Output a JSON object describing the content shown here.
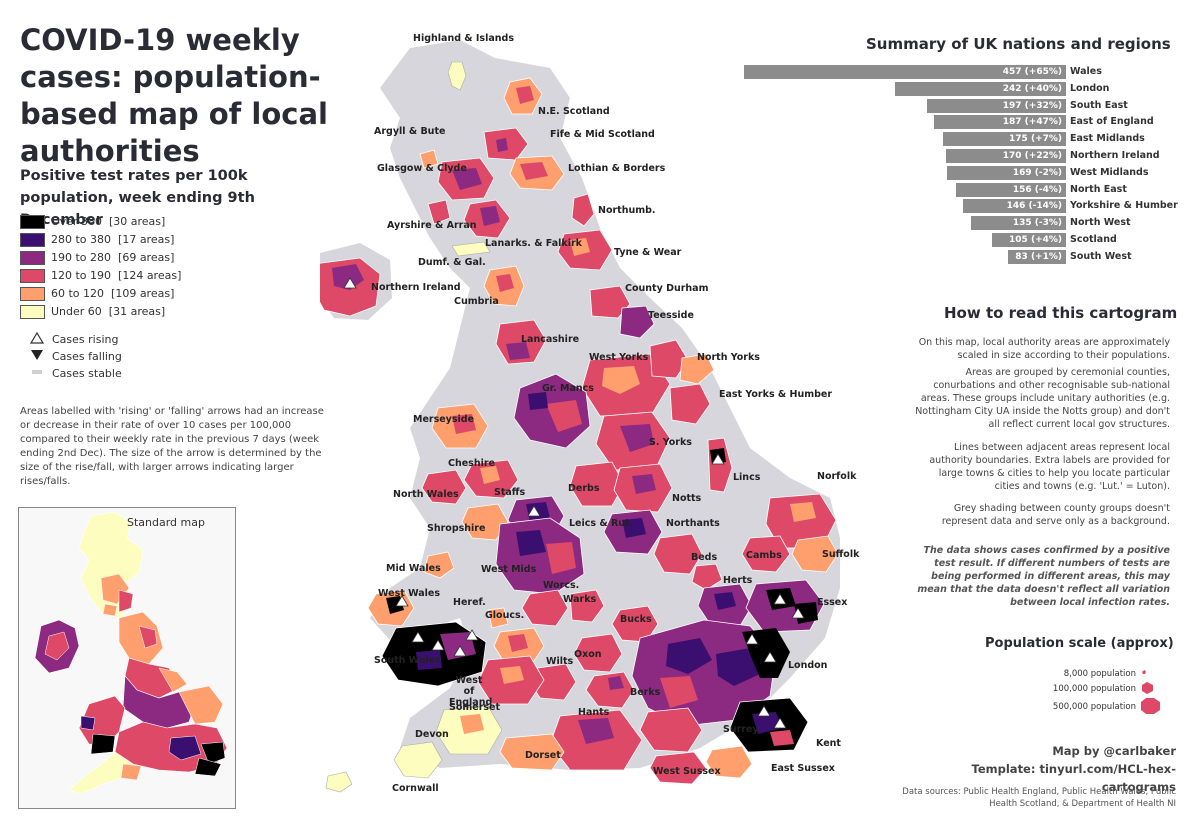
{
  "title": "COVID-19 weekly cases: population-based map of local authorities",
  "legend": {
    "heading": "Positive test rates per 100k population, week ending 9th December",
    "bins": [
      {
        "label": "Over 380",
        "count": "[30 areas]",
        "color": "#000000"
      },
      {
        "label": "280 to 380",
        "count": "[17 areas]",
        "color": "#3b0f70"
      },
      {
        "label": "190 to 280",
        "count": "[69 areas]",
        "color": "#8c2981"
      },
      {
        "label": "120 to 190",
        "count": "[124 areas]",
        "color": "#de4968"
      },
      {
        "label": "60 to 120",
        "count": "[109 areas]",
        "color": "#fe9f6d"
      },
      {
        "label": "Under 60",
        "count": "[31 areas]",
        "color": "#fcfdbf"
      }
    ],
    "trends": [
      {
        "label": "Cases rising",
        "icon": "triangle-up-outline"
      },
      {
        "label": "Cases falling",
        "icon": "triangle-down-filled"
      },
      {
        "label": "Cases stable",
        "icon": "grey-bar"
      }
    ],
    "note": "Areas labelled with 'rising' or 'falling' arrows had an increase or decrease in their rate of over 10 cases per 100,000 compared to their weekly rate in the previous 7 days (week ending 2nd Dec). The size of the arrow is determined by the size of the rise/fall, with larger arrows indicating larger rises/falls."
  },
  "standard_map": {
    "title": "Standard map"
  },
  "summary": {
    "title": "Summary of UK nations and regions",
    "rows": [
      {
        "name": "Wales",
        "value": 457,
        "change": "(+65%)"
      },
      {
        "name": "London",
        "value": 242,
        "change": "(+40%)"
      },
      {
        "name": "South East",
        "value": 197,
        "change": "(+32%)"
      },
      {
        "name": "East of England",
        "value": 187,
        "change": "(+47%)"
      },
      {
        "name": "East Midlands",
        "value": 175,
        "change": "(+7%)"
      },
      {
        "name": "Northern Ireland",
        "value": 170,
        "change": "(+22%)"
      },
      {
        "name": "West Midlands",
        "value": 169,
        "change": "(-2%)"
      },
      {
        "name": "North East",
        "value": 156,
        "change": "(-4%)"
      },
      {
        "name": "Yorkshire & Humber",
        "value": 146,
        "change": "(-14%)"
      },
      {
        "name": "North West",
        "value": 135,
        "change": "(-3%)"
      },
      {
        "name": "Scotland",
        "value": 105,
        "change": "(+4%)"
      },
      {
        "name": "South West",
        "value": 83,
        "change": "(+1%)"
      }
    ]
  },
  "howto": {
    "title": "How to read this cartogram",
    "p1": "On this map, local authority areas are approximately scaled in size according to their populations.",
    "p2": "Areas are grouped by ceremonial counties, conurbations and other recognisable sub-national areas. These groups include unitary authorities (e.g. Nottingham City UA inside the Notts group) and don't all reflect current local gov structures.",
    "p3": "Lines between adjacent areas represent local authority boundaries. Extra labels are provided for large towns & cities to help you locate particular cities and towns (e.g. 'Lut.' = Luton).",
    "p4": "Grey shading between county groups doesn't represent data and serve only as a background.",
    "caveat": "The data shows cases confirmed by a positive test result. If different numbers of tests are being performed in different areas, this may mean that the data doesn't reflect all variation between local infection rates."
  },
  "population_scale": {
    "title": "Population scale (approx)",
    "rows": [
      "8,000 population",
      "100,000 population",
      "500,000 population"
    ]
  },
  "credit": {
    "author": "Map by @carlbaker",
    "template": "Template: tinyurl.com/HCL-hex-cartograms"
  },
  "sources": "Data sources: Public Health England, Public Health Wales, Public Health Scotland, & Department of Health NI",
  "map_labels": [
    "Highland & Islands",
    "N.E. Scotland",
    "Argyll & Bute",
    "Fife & Mid Scotland",
    "Glasgow & Clyde",
    "Lothian & Borders",
    "Ayrshire & Arran",
    "Lanarks. & Falkirk",
    "Northumb.",
    "Dumf. & Gal.",
    "Tyne & Wear",
    "Northern Ireland",
    "Cumbria",
    "County Durham",
    "Teesside",
    "Lancashire",
    "West Yorks",
    "North Yorks",
    "Gr. Mancs",
    "East Yorks & Humber",
    "Merseyside",
    "S. Yorks",
    "Cheshire",
    "Lincs",
    "North Wales",
    "Staffs",
    "Derbs",
    "Notts",
    "Norfolk",
    "Shropshire",
    "Leics & Rut.",
    "Northants",
    "Suffolk",
    "Cambs",
    "Beds",
    "Mid Wales",
    "West Mids",
    "Herts",
    "Worcs.",
    "West Wales",
    "Heref.",
    "Warks",
    "Bucks",
    "Essex",
    "Gloucs.",
    "Oxon",
    "South Wales",
    "Wilts",
    "London",
    "West of England",
    "Berks",
    "Somerset",
    "Hants",
    "Surrey",
    "Kent",
    "Devon",
    "Dorset",
    "West Sussex",
    "East Sussex",
    "Cornwall"
  ]
}
